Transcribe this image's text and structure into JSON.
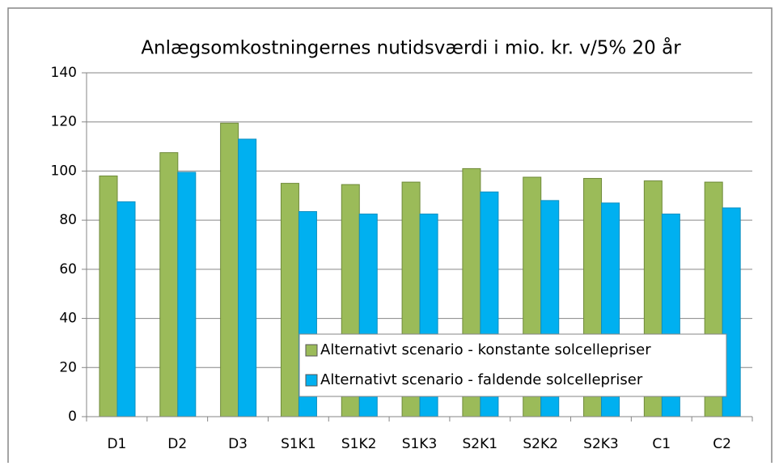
{
  "chart_data": {
    "type": "bar",
    "title": "Anlægsomkostningernes nutidsværdi i mio. kr. v/5% 20 år",
    "categories": [
      "D1",
      "D2",
      "D3",
      "S1K1",
      "S1K2",
      "S1K3",
      "S2K1",
      "S2K2",
      "S2K3",
      "C1",
      "C2"
    ],
    "series": [
      {
        "name": "Alternativt scenario - konstante solcellepriser",
        "color": "#9bbb59",
        "values": [
          98,
          107.5,
          119.5,
          95,
          94.5,
          95.5,
          101,
          97.5,
          97,
          96,
          95.5
        ]
      },
      {
        "name": "Alternativt scenario - faldende solcellepriser",
        "color": "#00b0f0",
        "values": [
          87.5,
          99.5,
          113,
          83.5,
          82.5,
          82.5,
          91.5,
          88,
          87,
          82.5,
          85
        ]
      }
    ],
    "ylim": [
      0,
      140
    ],
    "yticks": [
      0,
      20,
      40,
      60,
      80,
      100,
      120,
      140
    ],
    "grid": true,
    "legend": "lower right"
  }
}
